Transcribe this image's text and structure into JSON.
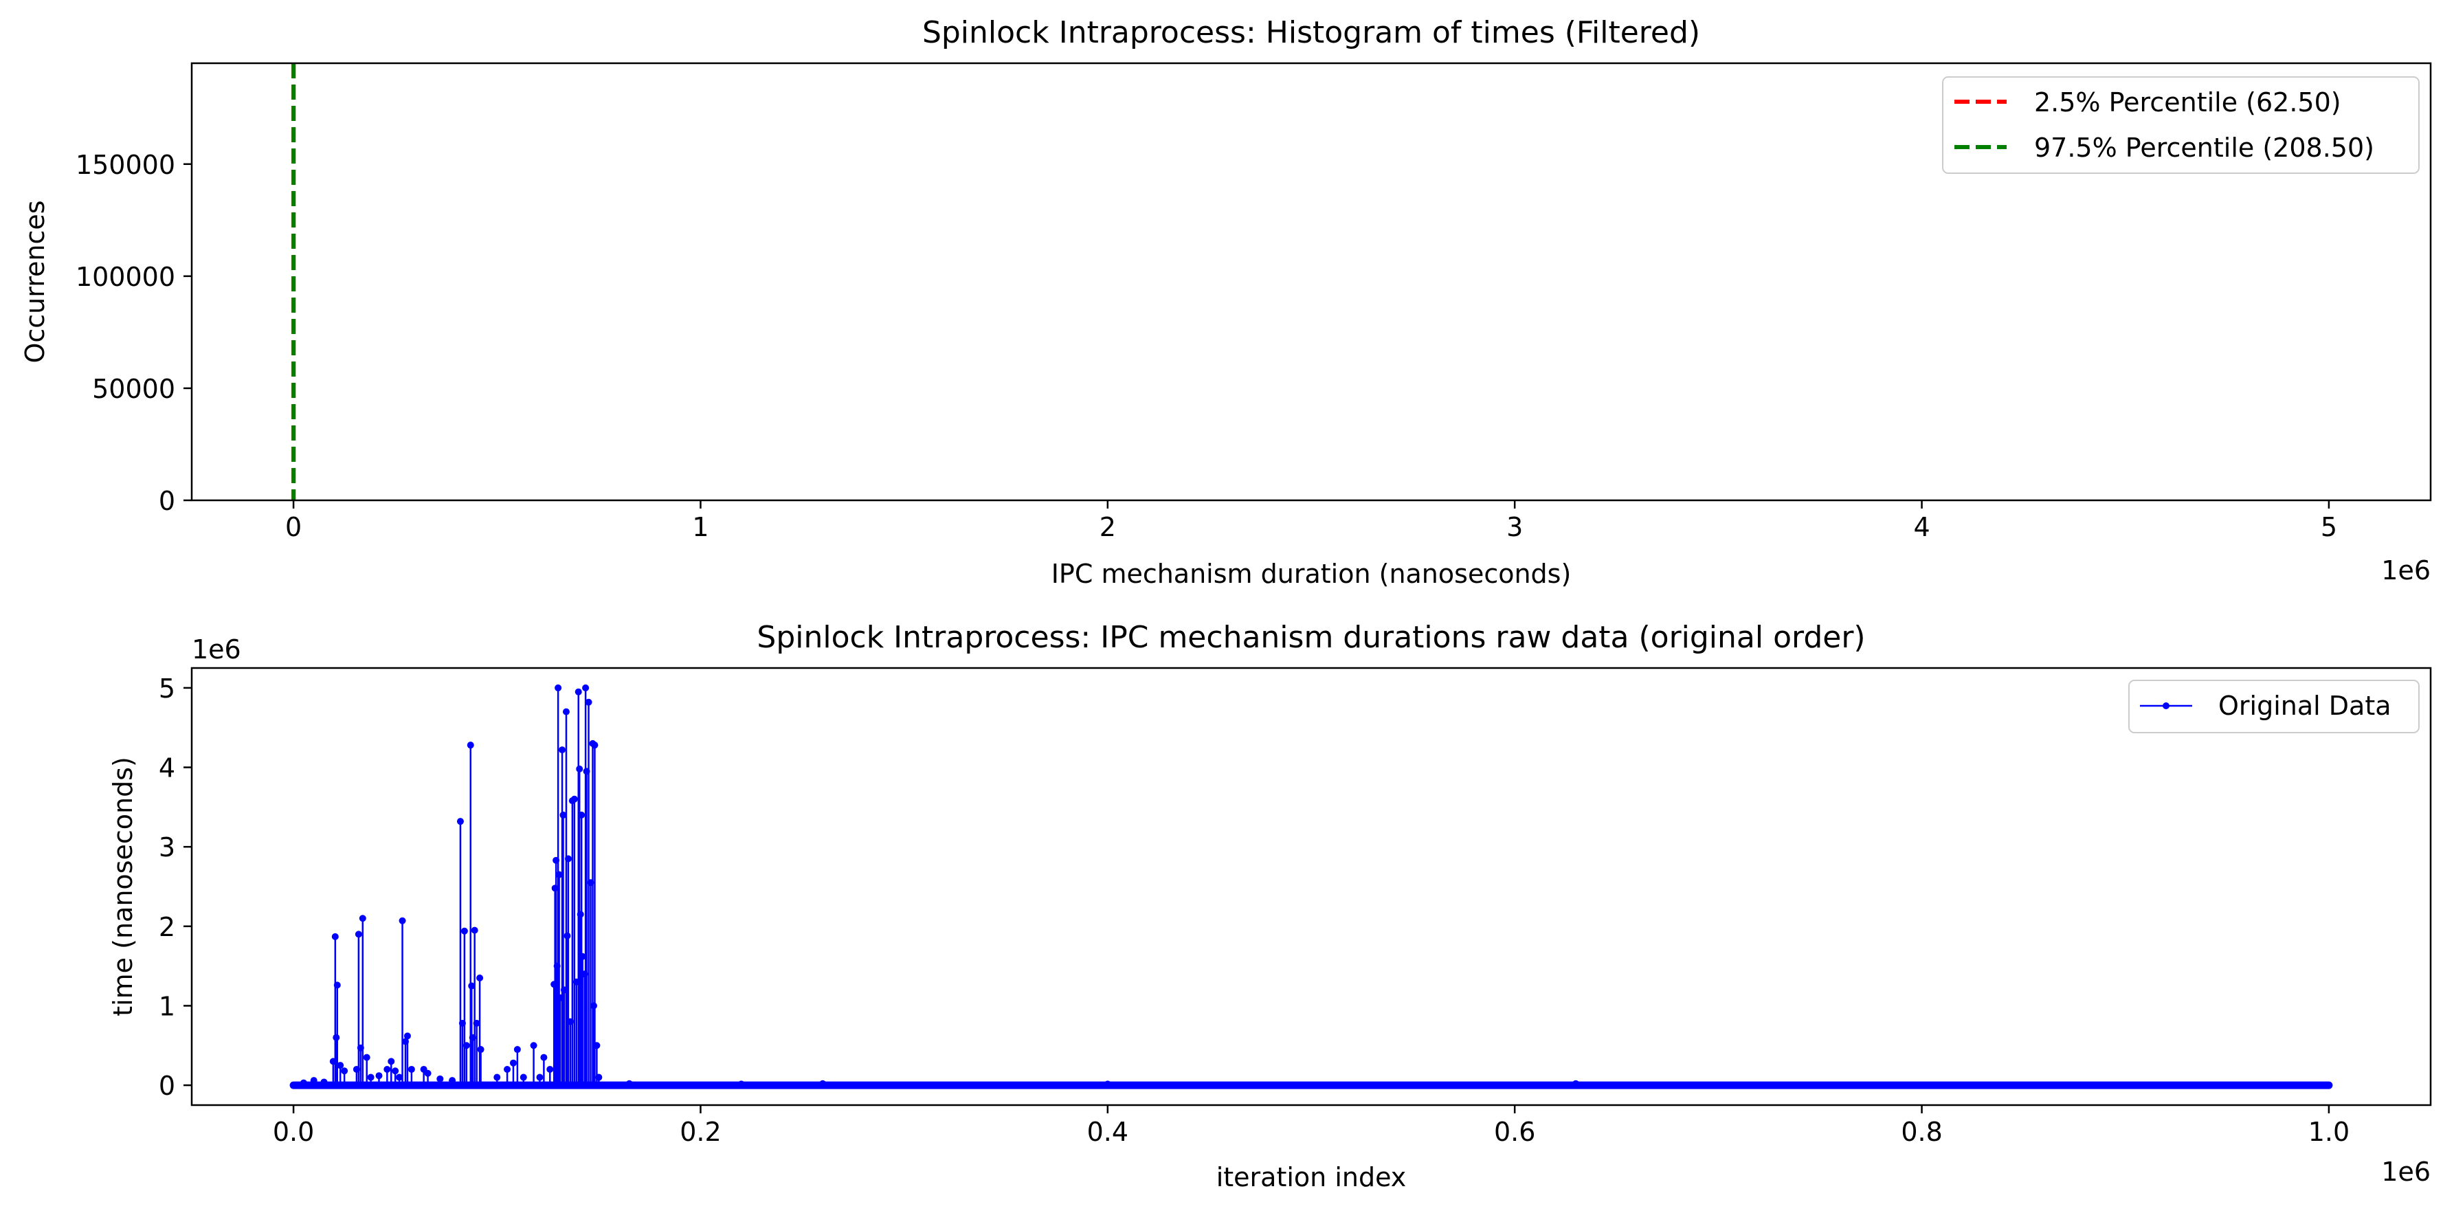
{
  "colors": {
    "p_low": "#ff0000",
    "p_high": "#008000",
    "raw": "#0000ff",
    "axis": "#000000",
    "background": "#ffffff"
  },
  "chart_data": [
    {
      "type": "histogram",
      "title": "Spinlock Intraprocess: Histogram of times (Filtered)",
      "xlabel": "IPC mechanism duration (nanoseconds)",
      "ylabel": "Occurrences",
      "x_offset_label": "1e6",
      "xlim": [
        -0.25,
        5.25
      ],
      "ylim": [
        0,
        195000
      ],
      "x_unit_scale": 1000000,
      "xticks": [
        0,
        1,
        2,
        3,
        4,
        5
      ],
      "xtick_labels": [
        "0",
        "1",
        "2",
        "3",
        "4",
        "5"
      ],
      "yticks": [
        0,
        50000,
        100000,
        150000
      ],
      "ytick_labels": [
        "0",
        "50000",
        "100000",
        "150000"
      ],
      "grid": false,
      "legend_position": "upper right",
      "vlines": [
        {
          "label": "2.5% Percentile (62.50)",
          "value": 62.5,
          "color": "#ff0000",
          "style": "dashed"
        },
        {
          "label": "97.5% Percentile (208.50)",
          "value": 208.5,
          "color": "#008000",
          "style": "dashed"
        }
      ]
    },
    {
      "type": "line",
      "title": "Spinlock Intraprocess: IPC mechanism durations raw data (original order)",
      "xlabel": "iteration index",
      "ylabel": "time (nanoseconds)",
      "x_offset_label": "1e6",
      "y_offset_label": "1e6",
      "xlim": [
        -0.05,
        1.05
      ],
      "ylim": [
        -0.25,
        5.25
      ],
      "xticks": [
        0.0,
        0.2,
        0.4,
        0.6,
        0.8,
        1.0
      ],
      "xtick_labels": [
        "0.0",
        "0.2",
        "0.4",
        "0.6",
        "0.8",
        "1.0"
      ],
      "yticks": [
        0,
        1,
        2,
        3,
        4,
        5
      ],
      "ytick_labels": [
        "0",
        "1",
        "2",
        "3",
        "4",
        "5"
      ],
      "grid": false,
      "legend_position": "upper right",
      "series": [
        {
          "name": "Original Data",
          "color": "#0000ff",
          "marker": "circle",
          "baseline_range": [
            0.0,
            1.0
          ],
          "baseline_value": 0.0,
          "spikes": [
            [
              0.005,
              0.03
            ],
            [
              0.01,
              0.06
            ],
            [
              0.015,
              0.04
            ],
            [
              0.0195,
              0.3
            ],
            [
              0.0205,
              1.87
            ],
            [
              0.021,
              0.6
            ],
            [
              0.0215,
              1.26
            ],
            [
              0.023,
              0.25
            ],
            [
              0.025,
              0.18
            ],
            [
              0.031,
              0.2
            ],
            [
              0.032,
              1.9
            ],
            [
              0.033,
              0.47
            ],
            [
              0.034,
              2.1
            ],
            [
              0.036,
              0.35
            ],
            [
              0.038,
              0.1
            ],
            [
              0.042,
              0.12
            ],
            [
              0.046,
              0.2
            ],
            [
              0.048,
              0.3
            ],
            [
              0.05,
              0.18
            ],
            [
              0.052,
              0.1
            ],
            [
              0.0535,
              2.07
            ],
            [
              0.055,
              0.55
            ],
            [
              0.056,
              0.62
            ],
            [
              0.058,
              0.2
            ],
            [
              0.064,
              0.2
            ],
            [
              0.066,
              0.15
            ],
            [
              0.072,
              0.08
            ],
            [
              0.078,
              0.06
            ],
            [
              0.082,
              3.32
            ],
            [
              0.083,
              0.78
            ],
            [
              0.084,
              1.94
            ],
            [
              0.085,
              0.5
            ],
            [
              0.087,
              4.28
            ],
            [
              0.0875,
              1.25
            ],
            [
              0.088,
              0.6
            ],
            [
              0.089,
              1.95
            ],
            [
              0.09,
              0.78
            ],
            [
              0.0915,
              1.35
            ],
            [
              0.092,
              0.45
            ],
            [
              0.1,
              0.1
            ],
            [
              0.105,
              0.2
            ],
            [
              0.108,
              0.28
            ],
            [
              0.11,
              0.45
            ],
            [
              0.113,
              0.1
            ],
            [
              0.118,
              0.5
            ],
            [
              0.121,
              0.1
            ],
            [
              0.123,
              0.35
            ],
            [
              0.126,
              0.2
            ],
            [
              0.128,
              1.27
            ],
            [
              0.1285,
              2.48
            ],
            [
              0.129,
              2.83
            ],
            [
              0.1295,
              1.5
            ],
            [
              0.13,
              5.0
            ],
            [
              0.1305,
              2.65
            ],
            [
              0.131,
              1.1
            ],
            [
              0.132,
              4.22
            ],
            [
              0.1325,
              3.4
            ],
            [
              0.133,
              1.2
            ],
            [
              0.134,
              4.7
            ],
            [
              0.1345,
              1.88
            ],
            [
              0.135,
              2.85
            ],
            [
              0.136,
              0.8
            ],
            [
              0.137,
              3.58
            ],
            [
              0.138,
              3.6
            ],
            [
              0.139,
              1.3
            ],
            [
              0.14,
              4.95
            ],
            [
              0.1405,
              3.98
            ],
            [
              0.141,
              2.15
            ],
            [
              0.1415,
              3.4
            ],
            [
              0.142,
              1.62
            ],
            [
              0.143,
              1.4
            ],
            [
              0.1435,
              5.0
            ],
            [
              0.144,
              3.95
            ],
            [
              0.145,
              4.82
            ],
            [
              0.146,
              2.55
            ],
            [
              0.147,
              4.3
            ],
            [
              0.1475,
              1.0
            ],
            [
              0.148,
              4.28
            ],
            [
              0.149,
              0.5
            ],
            [
              0.15,
              0.1
            ],
            [
              0.165,
              0.02
            ],
            [
              0.22,
              0.015
            ],
            [
              0.26,
              0.02
            ],
            [
              0.4,
              0.015
            ],
            [
              0.63,
              0.02
            ]
          ]
        }
      ]
    }
  ]
}
